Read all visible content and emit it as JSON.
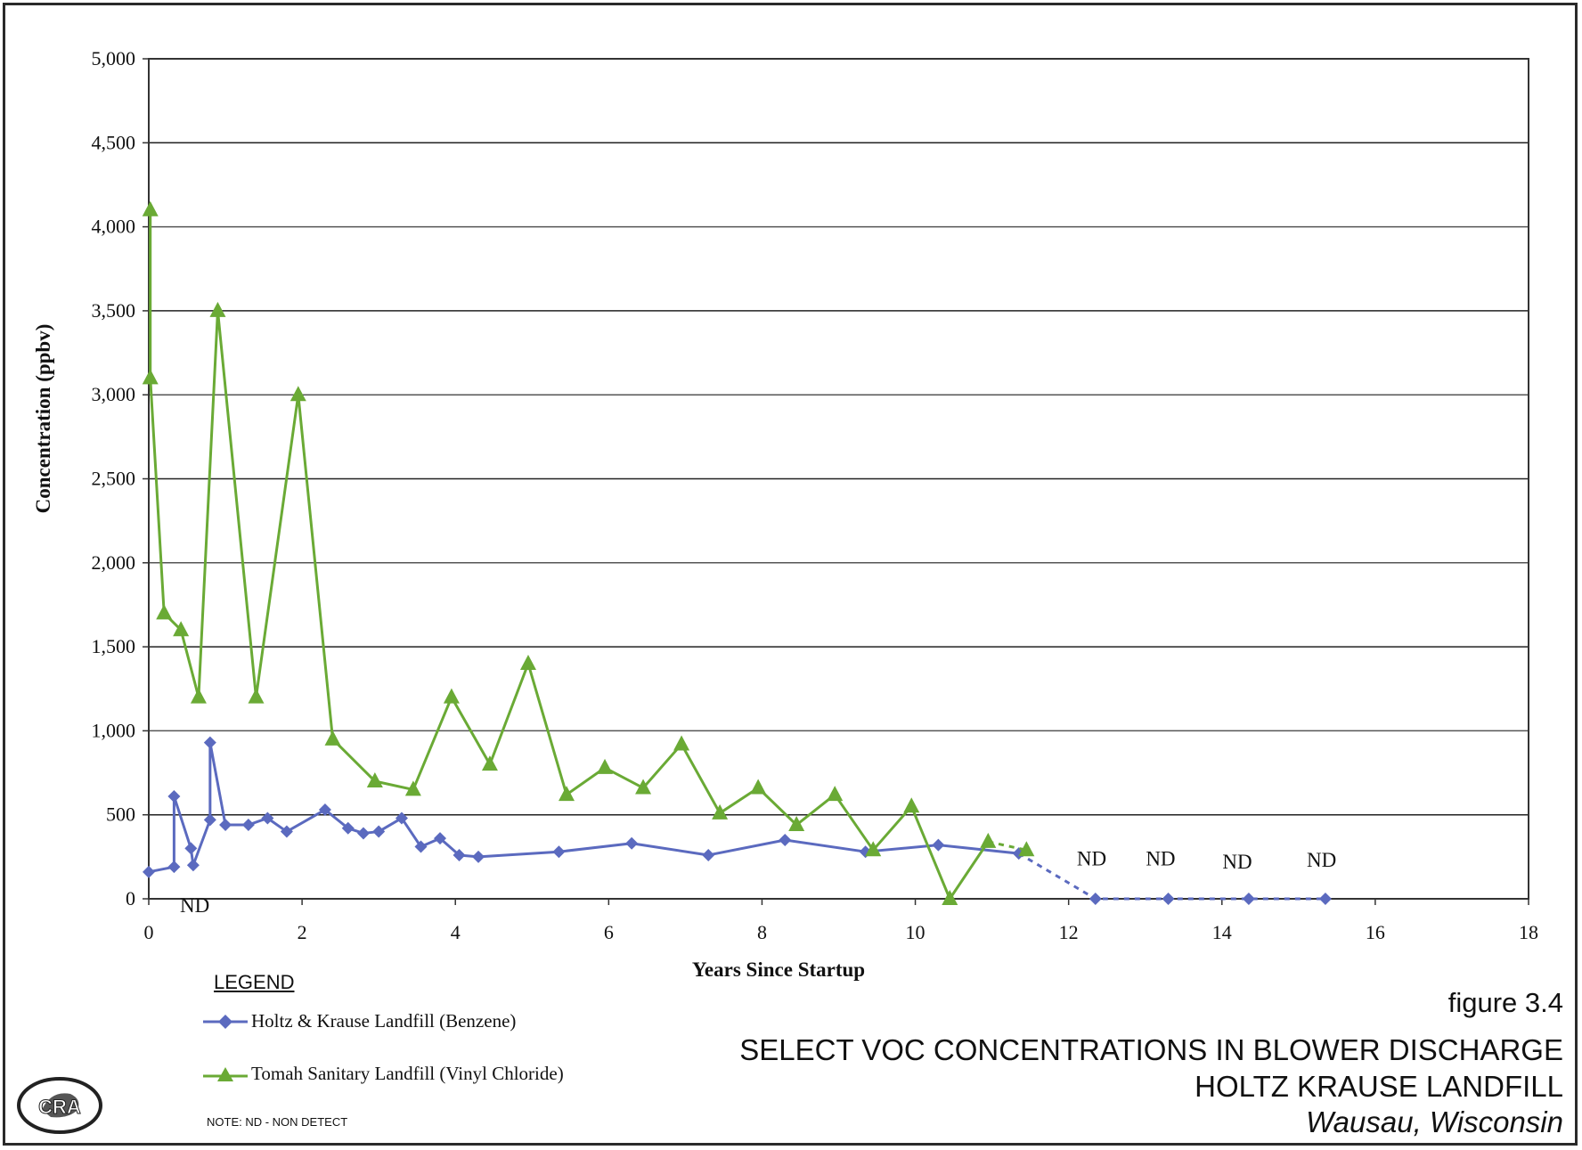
{
  "chart_data": {
    "type": "line",
    "xlabel": "Years Since Startup",
    "ylabel": "Concentration (ppbv)",
    "xlim": [
      0,
      18
    ],
    "ylim": [
      0,
      5000
    ],
    "x_ticks": [
      "0",
      "2",
      "4",
      "6",
      "8",
      "10",
      "12",
      "14",
      "16",
      "18"
    ],
    "y_ticks": [
      "0",
      "500",
      "1,000",
      "1,500",
      "2,000",
      "2,500",
      "3,000",
      "3,500",
      "4,000",
      "4,500",
      "5,000"
    ],
    "grid": "horizontal",
    "series": [
      {
        "name": "Holtz & Krause Landfill (Benzene)",
        "color": "#5b6abf",
        "marker": "diamond",
        "x": [
          0,
          0.33,
          0.33,
          0.55,
          0.58,
          0.8,
          0.8,
          1.0,
          1.3,
          1.55,
          1.8,
          2.3,
          2.6,
          2.8,
          3.0,
          3.3,
          3.55,
          3.8,
          4.05,
          4.3,
          5.35,
          6.3,
          7.3,
          8.3,
          9.35,
          10.3,
          11.35
        ],
        "y": [
          160,
          190,
          610,
          300,
          200,
          470,
          930,
          440,
          440,
          480,
          400,
          530,
          420,
          390,
          400,
          480,
          310,
          360,
          260,
          250,
          280,
          330,
          260,
          350,
          280,
          320,
          270
        ],
        "nd_points": {
          "x": [
            12.35,
            13.3,
            14.35,
            15.35
          ],
          "y": [
            0,
            0,
            0,
            0
          ]
        }
      },
      {
        "name": "Tomah Sanitary Landfill (Vinyl Chloride)",
        "color": "#6aaa35",
        "marker": "triangle",
        "x": [
          0.02,
          0.02,
          0.2,
          0.42,
          0.65,
          0.9,
          1.4,
          1.95,
          2.4,
          2.95,
          3.45,
          3.95,
          4.45,
          4.95,
          5.45,
          5.95,
          6.45,
          6.95,
          7.45,
          7.95,
          8.45,
          8.95,
          9.45,
          9.95,
          10.45,
          10.95
        ],
        "y": [
          4100,
          3100,
          1700,
          1600,
          1200,
          3500,
          1200,
          3000,
          950,
          700,
          650,
          1200,
          800,
          1400,
          620,
          780,
          660,
          920,
          510,
          660,
          440,
          620,
          290,
          550,
          0,
          340
        ],
        "nd_points": {
          "x": [
            11.45
          ],
          "y": [
            290
          ]
        }
      }
    ],
    "annotations": [
      {
        "text": "ND",
        "x": 0.6,
        "y": -80
      },
      {
        "text": "ND",
        "x": 12.3,
        "y": 200
      },
      {
        "text": "ND",
        "x": 13.2,
        "y": 200
      },
      {
        "text": "ND",
        "x": 14.2,
        "y": 180
      },
      {
        "text": "ND",
        "x": 15.3,
        "y": 190
      }
    ]
  },
  "legend": {
    "title": "LEGEND",
    "items": [
      "Holtz & Krause Landfill (Benzene)",
      "Tomah Sanitary Landfill (Vinyl Chloride)"
    ]
  },
  "note": "NOTE: ND - NON DETECT",
  "figure": {
    "number": "figure 3.4",
    "title": "SELECT VOC CONCENTRATIONS IN BLOWER DISCHARGE",
    "site": "HOLTZ KRAUSE LANDFILL",
    "location": "Wausau, Wisconsin"
  },
  "logo_text": "CRA"
}
